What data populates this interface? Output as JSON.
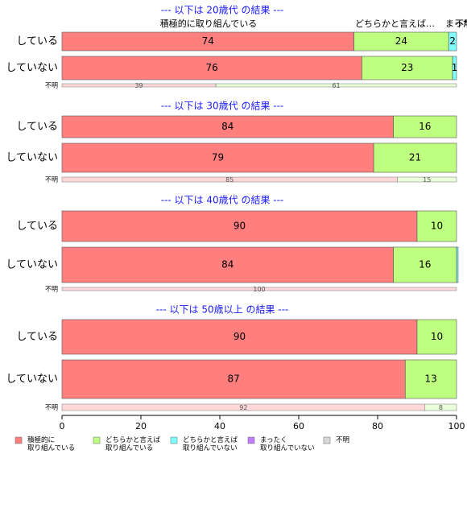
{
  "chart_data": {
    "type": "bar",
    "orientation": "horizontal",
    "stacked": true,
    "xlim": [
      0,
      100
    ],
    "x_ticks": [
      0,
      20,
      40,
      60,
      80,
      100
    ],
    "category_labels": {
      "top_1": "積極的に取り組んでいる",
      "top_2": "どちらかと言えば…",
      "top_3": "まった…",
      "top_4": "不明"
    },
    "legend": {
      "placement": "bottom",
      "items": [
        {
          "label": "積極的に\n取り組んでいる",
          "color": "#ff7f7f"
        },
        {
          "label": "どちらかと言えば\n取り組んでいる",
          "color": "#bfff7f"
        },
        {
          "label": "どちらかと言えば\n取り組んでいない",
          "color": "#7fffff"
        },
        {
          "label": "まったく\n取り組んでいない",
          "color": "#bf7fff"
        },
        {
          "label": "不明",
          "color": "#d9d9d9"
        }
      ]
    },
    "panels": [
      {
        "title": "--- 以下は 20歳代 の結果 ---",
        "rows": [
          {
            "label": "している",
            "values": [
              74,
              24,
              2,
              0,
              0
            ],
            "labels": [
              "74",
              "24",
              "2",
              "",
              ""
            ]
          },
          {
            "label": "していない",
            "values": [
              76,
              23,
              1,
              0,
              0
            ],
            "labels": [
              "76",
              "23",
              "1",
              "",
              ""
            ]
          }
        ],
        "unknown": {
          "label": "不明",
          "values": [
            39,
            61
          ],
          "labels": [
            "39",
            "61"
          ]
        }
      },
      {
        "title": "--- 以下は 30歳代 の結果 ---",
        "rows": [
          {
            "label": "している",
            "values": [
              84,
              16,
              0,
              0,
              0
            ],
            "labels": [
              "84",
              "16",
              "",
              "",
              ""
            ]
          },
          {
            "label": "していない",
            "values": [
              79,
              21,
              0,
              0,
              0
            ],
            "labels": [
              "79",
              "21",
              "",
              "",
              ""
            ]
          }
        ],
        "unknown": {
          "label": "不明",
          "values": [
            85,
            15
          ],
          "labels": [
            "85",
            "15"
          ]
        }
      },
      {
        "title": "--- 以下は 40歳代 の結果 ---",
        "rows": [
          {
            "label": "している",
            "values": [
              90,
              10,
              0,
              0,
              0
            ],
            "labels": [
              "90",
              "10",
              "",
              "",
              ""
            ]
          },
          {
            "label": "していない",
            "values": [
              84,
              16,
              0.4,
              0,
              0
            ],
            "labels": [
              "84",
              "16",
              "",
              "",
              ""
            ]
          }
        ],
        "unknown": {
          "label": "不明",
          "values": [
            100,
            0
          ],
          "labels": [
            "100",
            ""
          ]
        }
      },
      {
        "title": "--- 以下は 50歳以上 の結果 ---",
        "rows": [
          {
            "label": "している",
            "values": [
              90,
              10,
              0,
              0,
              0
            ],
            "labels": [
              "90",
              "10",
              "",
              "",
              ""
            ]
          },
          {
            "label": "していない",
            "values": [
              87,
              13,
              0,
              0,
              0
            ],
            "labels": [
              "87",
              "13",
              "",
              "",
              ""
            ]
          }
        ],
        "unknown": {
          "label": "不明",
          "values": [
            92,
            8
          ],
          "labels": [
            "92",
            "8"
          ]
        }
      }
    ]
  }
}
